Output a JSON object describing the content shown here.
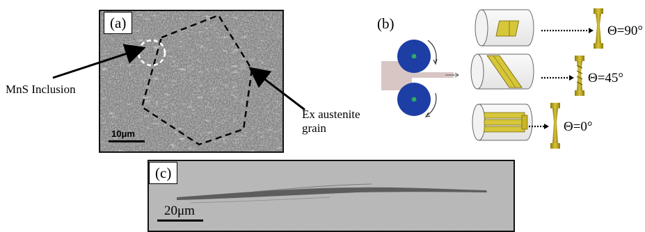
{
  "panel_a": {
    "tag": "(a)",
    "scale_label": "10μm",
    "mns_label": "MnS Inclusion",
    "austenite_label_line1": "Ex austenite",
    "austenite_label_line2": "grain"
  },
  "panel_b": {
    "tag": "(b)",
    "theta_90": "Θ=90°",
    "theta_45": "Θ=45°",
    "theta_0": "Θ=0°"
  },
  "panel_c": {
    "tag": "(c)",
    "scale_label": "20μm"
  },
  "colors": {
    "roller_blue": "#1d3fa5",
    "roller_center": "#2fa86a",
    "sheet_pink": "#d8c6c4",
    "specimen_gold": "#b7a21c",
    "sem_gray": "#8a8a8a",
    "sem_c_gray": "#b3b3b3"
  }
}
